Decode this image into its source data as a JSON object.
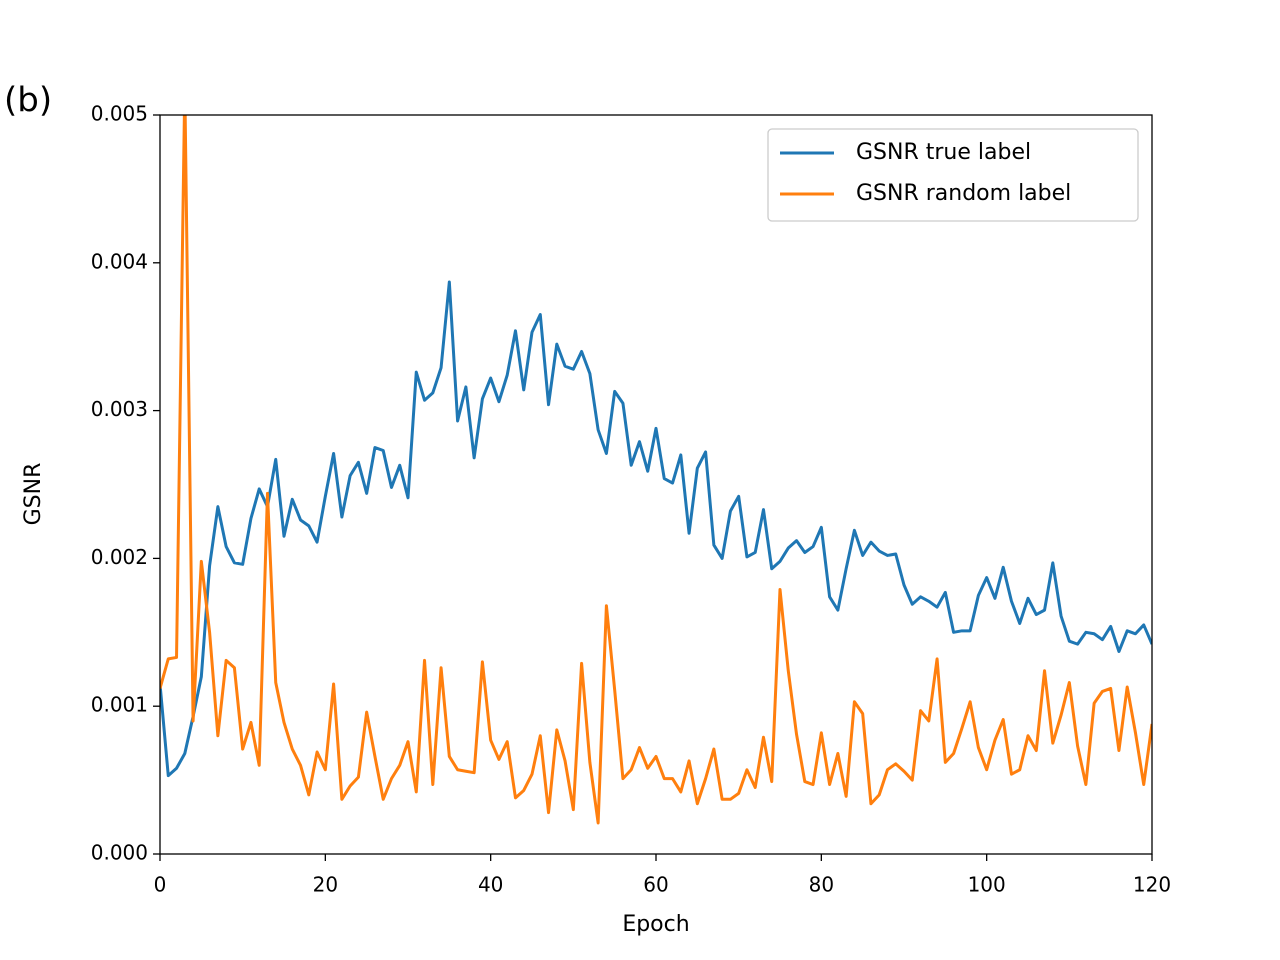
{
  "chart_data": {
    "type": "line",
    "panel_label": "(b)",
    "xlabel": "Epoch",
    "ylabel": "GSNR",
    "xlim": [
      0,
      120
    ],
    "ylim": [
      0,
      0.005
    ],
    "xticks": [
      0,
      20,
      40,
      60,
      80,
      100,
      120
    ],
    "yticks": [
      {
        "value": 0,
        "label": "0.000"
      },
      {
        "value": 0.001,
        "label": "0.001"
      },
      {
        "value": 0.002,
        "label": "0.002"
      },
      {
        "value": 0.003,
        "label": "0.003"
      },
      {
        "value": 0.004,
        "label": "0.004"
      },
      {
        "value": 0.005,
        "label": "0.005"
      }
    ],
    "legend": "upper right",
    "x": [
      0,
      1,
      2,
      3,
      4,
      5,
      6,
      7,
      8,
      9,
      10,
      11,
      12,
      13,
      14,
      15,
      16,
      17,
      18,
      19,
      20,
      21,
      22,
      23,
      24,
      25,
      26,
      27,
      28,
      29,
      30,
      31,
      32,
      33,
      34,
      35,
      36,
      37,
      38,
      39,
      40,
      41,
      42,
      43,
      44,
      45,
      46,
      47,
      48,
      49,
      50,
      51,
      52,
      53,
      54,
      55,
      56,
      57,
      58,
      59,
      60,
      61,
      62,
      63,
      64,
      65,
      66,
      67,
      68,
      69,
      70,
      71,
      72,
      73,
      74,
      75,
      76,
      77,
      78,
      79,
      80,
      81,
      82,
      83,
      84,
      85,
      86,
      87,
      88,
      89,
      90,
      91,
      92,
      93,
      94,
      95,
      96,
      97,
      98,
      99,
      100,
      101,
      102,
      103,
      104,
      105,
      106,
      107,
      108,
      109,
      110,
      111,
      112,
      113,
      114,
      115,
      116,
      117,
      118,
      119,
      120
    ],
    "series": [
      {
        "name": "GSNR true label",
        "color": "#1f77b4",
        "values": [
          0.00115,
          0.00053,
          0.00058,
          0.00068,
          0.00093,
          0.0012,
          0.00195,
          0.00235,
          0.00208,
          0.00197,
          0.00196,
          0.00227,
          0.00247,
          0.00235,
          0.00267,
          0.00215,
          0.0024,
          0.00226,
          0.00222,
          0.00211,
          0.00242,
          0.00271,
          0.00228,
          0.00256,
          0.00265,
          0.00244,
          0.00275,
          0.00273,
          0.00248,
          0.00263,
          0.00241,
          0.00326,
          0.00307,
          0.00312,
          0.00329,
          0.00387,
          0.00293,
          0.00316,
          0.00268,
          0.00308,
          0.00322,
          0.00306,
          0.00324,
          0.00354,
          0.00314,
          0.00353,
          0.00365,
          0.00304,
          0.00345,
          0.0033,
          0.00328,
          0.0034,
          0.00325,
          0.00287,
          0.00271,
          0.00313,
          0.00305,
          0.00263,
          0.00279,
          0.00259,
          0.00288,
          0.00254,
          0.00251,
          0.0027,
          0.00217,
          0.00261,
          0.00272,
          0.00209,
          0.002,
          0.00232,
          0.00242,
          0.00201,
          0.00204,
          0.00233,
          0.00193,
          0.00198,
          0.00207,
          0.00212,
          0.00204,
          0.00208,
          0.00221,
          0.00174,
          0.00165,
          0.00193,
          0.00219,
          0.00202,
          0.00211,
          0.00205,
          0.00202,
          0.00203,
          0.00182,
          0.00169,
          0.00174,
          0.00171,
          0.00167,
          0.00177,
          0.0015,
          0.00151,
          0.00151,
          0.00175,
          0.00187,
          0.00173,
          0.00194,
          0.00171,
          0.00156,
          0.00173,
          0.00162,
          0.00165,
          0.00197,
          0.00161,
          0.00144,
          0.00142,
          0.0015,
          0.00149,
          0.00145,
          0.00154,
          0.00137,
          0.00151,
          0.00149,
          0.00155,
          0.00142
        ]
      },
      {
        "name": "GSNR random label",
        "color": "#ff7f0e",
        "values": [
          0.00112,
          0.00132,
          0.00133,
          0.0052,
          0.0009,
          0.00198,
          0.0015,
          0.0008,
          0.00131,
          0.00126,
          0.00071,
          0.00089,
          0.0006,
          0.00244,
          0.00116,
          0.00089,
          0.00071,
          0.0006,
          0.0004,
          0.00069,
          0.00057,
          0.00115,
          0.00037,
          0.00046,
          0.00052,
          0.00096,
          0.00066,
          0.00037,
          0.00051,
          0.0006,
          0.00076,
          0.00042,
          0.00131,
          0.00047,
          0.00126,
          0.00066,
          0.00057,
          0.00056,
          0.00055,
          0.0013,
          0.00077,
          0.00064,
          0.00076,
          0.00038,
          0.00043,
          0.00054,
          0.0008,
          0.00028,
          0.00084,
          0.00063,
          0.0003,
          0.00129,
          0.00062,
          0.00021,
          0.00168,
          0.00111,
          0.00051,
          0.00057,
          0.00072,
          0.00058,
          0.00066,
          0.00051,
          0.00051,
          0.00042,
          0.00063,
          0.00034,
          0.00051,
          0.00071,
          0.00037,
          0.00037,
          0.00041,
          0.00057,
          0.00045,
          0.00079,
          0.00049,
          0.00179,
          0.00124,
          0.00081,
          0.00049,
          0.00047,
          0.00082,
          0.00047,
          0.00068,
          0.00039,
          0.00103,
          0.00095,
          0.00034,
          0.0004,
          0.00057,
          0.00061,
          0.00056,
          0.0005,
          0.00097,
          0.0009,
          0.00132,
          0.00062,
          0.00068,
          0.00085,
          0.00103,
          0.00072,
          0.00057,
          0.00077,
          0.00091,
          0.00054,
          0.00057,
          0.0008,
          0.0007,
          0.00124,
          0.00075,
          0.00094,
          0.00116,
          0.00073,
          0.00047,
          0.00102,
          0.0011,
          0.00112,
          0.0007,
          0.00113,
          0.00082,
          0.00047,
          0.00088
        ]
      }
    ]
  }
}
